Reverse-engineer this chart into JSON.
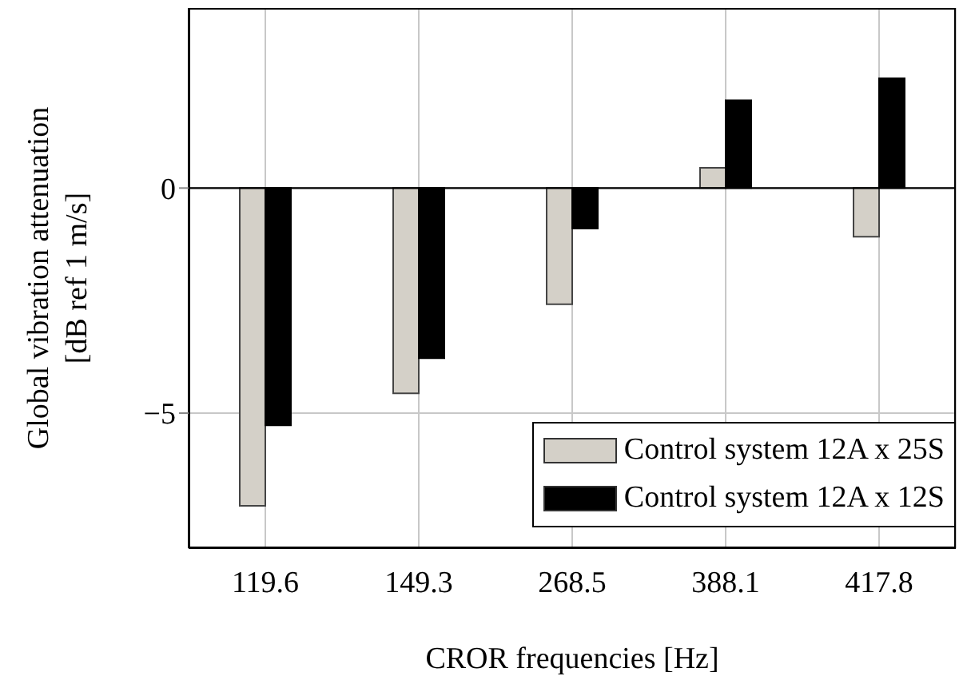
{
  "chart_data": {
    "type": "bar",
    "xlabel": "CROR frequencies [Hz]",
    "ylabel": "Global vibration attenuation\n[dB ref 1 m/s]",
    "categories": [
      "119.6",
      "149.3",
      "268.5",
      "388.1",
      "417.8"
    ],
    "series": [
      {
        "name": "Control system 12A x 25S",
        "color": "#d4d0c8",
        "values": [
          -7.06,
          -4.56,
          -2.58,
          0.45,
          -1.08
        ]
      },
      {
        "name": "Control system 12A x 12S",
        "color": "#000000",
        "values": [
          -5.27,
          -3.78,
          -0.9,
          1.95,
          2.44
        ]
      }
    ],
    "ylim": [
      -8,
      4
    ],
    "yticks": [
      {
        "value": -5,
        "label": "−5"
      },
      {
        "value": 0,
        "label": "0"
      }
    ],
    "ref_lines": [
      {
        "axis": "y",
        "value": 0,
        "color": "#000000"
      }
    ],
    "grid": true,
    "legend": "bottom right"
  }
}
